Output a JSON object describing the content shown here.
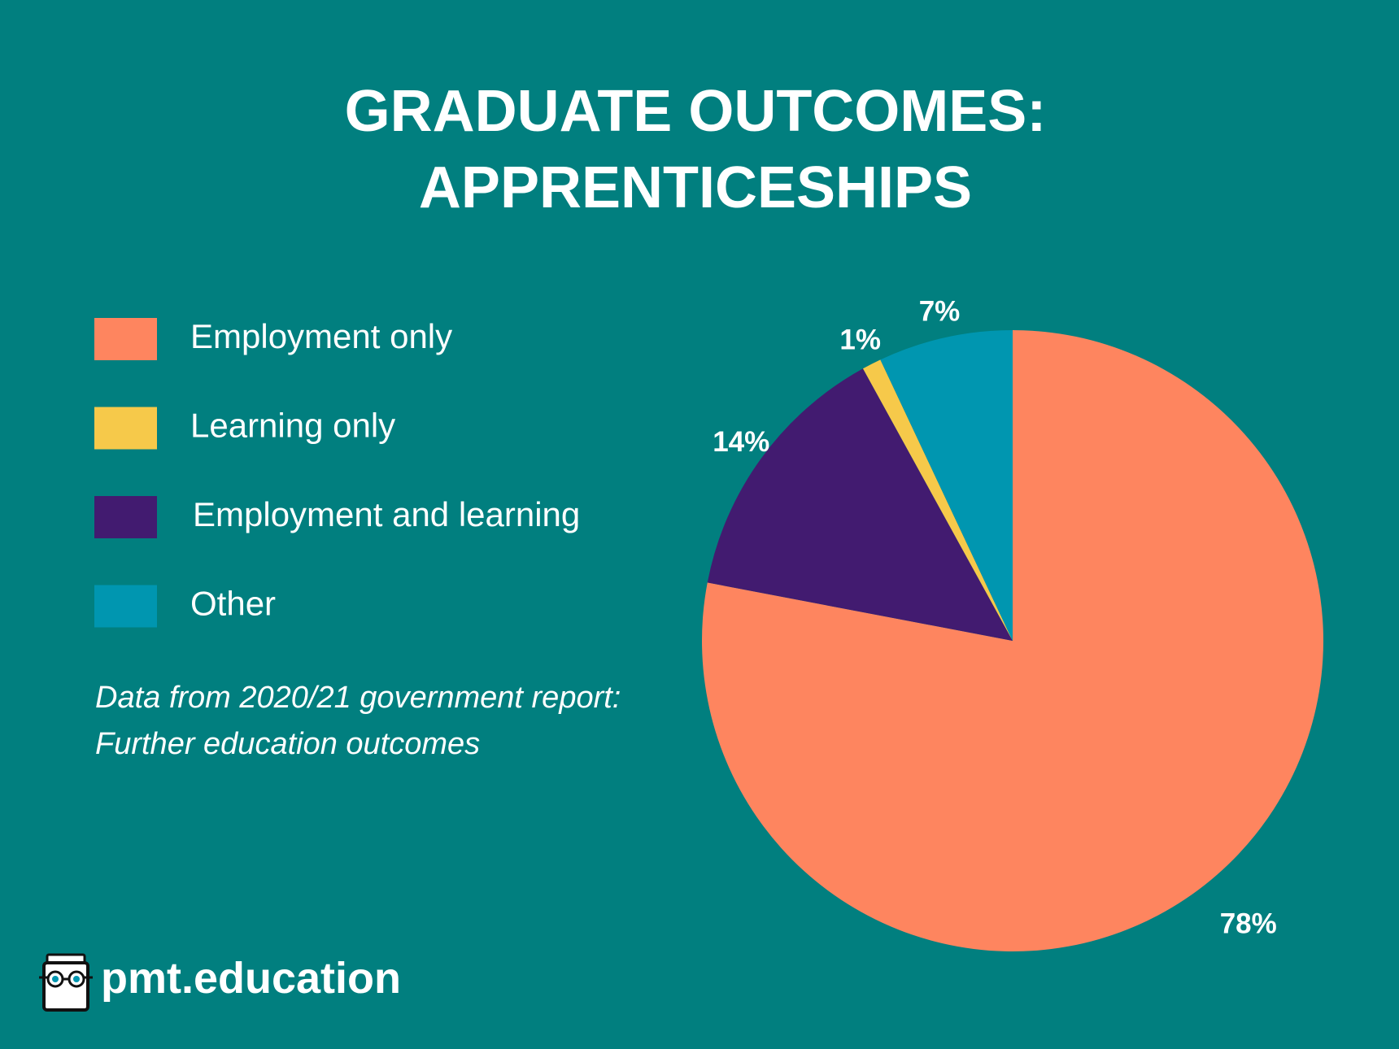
{
  "chart_data": {
    "type": "pie",
    "title": "GRADUATE OUTCOMES: APPRENTICESHIPS",
    "series": [
      {
        "name": "Employment only",
        "color": "#fe855f",
        "values": [
          78
        ],
        "value_labels": [
          "78%"
        ]
      },
      {
        "name": "Learning only",
        "color": "#f6c94a",
        "values": [
          1
        ],
        "value_labels": [
          "1%"
        ]
      },
      {
        "name": "Employment and learning",
        "color": "#421b70",
        "values": [
          14
        ],
        "value_labels": [
          "14%"
        ]
      },
      {
        "name": "Other",
        "color": "#0096b0",
        "values": [
          7
        ],
        "value_labels": [
          "7%"
        ]
      }
    ],
    "note": "Data from 2020/21 government report: Further education outcomes",
    "source": "pmt.education",
    "legend": "left"
  }
}
